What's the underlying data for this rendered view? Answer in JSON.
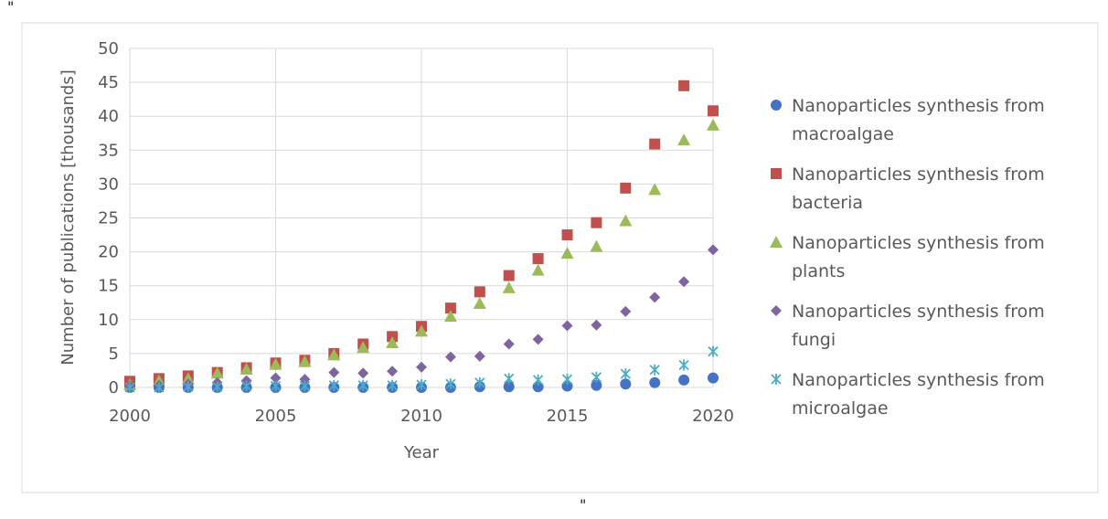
{
  "stray_marks": [
    "\"",
    "\"",
    "\""
  ],
  "chart_data": {
    "type": "scatter",
    "title": "",
    "xlabel": "Year",
    "ylabel": "Number of publications [thousands]",
    "xlim": [
      2000,
      2020
    ],
    "ylim": [
      0,
      50
    ],
    "xticks": [
      2000,
      2005,
      2010,
      2015,
      2020
    ],
    "yticks": [
      0,
      5,
      10,
      15,
      20,
      25,
      30,
      35,
      40,
      45,
      50
    ],
    "grid": true,
    "legend_position": "right",
    "x": [
      2000,
      2001,
      2002,
      2003,
      2004,
      2005,
      2006,
      2007,
      2008,
      2009,
      2010,
      2011,
      2012,
      2013,
      2014,
      2015,
      2016,
      2017,
      2018,
      2019,
      2020
    ],
    "series": [
      {
        "name": "Nanoparticles synthesis from macroalgae",
        "legend_lines": [
          "Nanoparticles synthesis from",
          "macroalgae"
        ],
        "marker": "circle",
        "color": "#4472C4",
        "values": [
          0.0,
          0.0,
          0.0,
          0.0,
          0.0,
          0.0,
          0.0,
          0.0,
          0.0,
          0.0,
          0.0,
          0.0,
          0.1,
          0.1,
          0.1,
          0.2,
          0.3,
          0.5,
          0.7,
          1.1,
          1.4
        ]
      },
      {
        "name": "Nanoparticles synthesis from bacteria",
        "legend_lines": [
          "Nanoparticles synthesis from",
          "bacteria"
        ],
        "marker": "square",
        "color": "#C0504D",
        "values": [
          0.9,
          1.3,
          1.7,
          2.2,
          2.9,
          3.6,
          4.0,
          5.0,
          6.4,
          7.5,
          9.0,
          11.7,
          14.1,
          16.5,
          19.0,
          22.5,
          24.3,
          29.4,
          35.9,
          44.5,
          40.8
        ]
      },
      {
        "name": "Nanoparticles synthesis from plants",
        "legend_lines": [
          "Nanoparticles synthesis from",
          "plants"
        ],
        "marker": "triangle",
        "color": "#9BBB59",
        "values": [
          0.4,
          1.0,
          1.3,
          2.1,
          2.7,
          3.4,
          3.8,
          4.8,
          5.9,
          6.6,
          8.3,
          10.5,
          12.4,
          14.7,
          17.3,
          19.8,
          20.8,
          24.6,
          29.2,
          36.5,
          38.7
        ]
      },
      {
        "name": "Nanoparticles synthesis from fungi",
        "legend_lines": [
          "Nanoparticles synthesis from",
          "fungi"
        ],
        "marker": "diamond",
        "color": "#8064A2",
        "values": [
          0.2,
          0.3,
          0.5,
          0.7,
          1.0,
          1.4,
          1.2,
          2.2,
          2.1,
          2.4,
          3.0,
          4.5,
          4.6,
          6.4,
          7.1,
          9.1,
          9.2,
          11.2,
          13.3,
          15.6,
          20.3
        ]
      },
      {
        "name": "Nanoparticles synthesis from microalgae",
        "legend_lines": [
          "Nanoparticles synthesis from",
          "microalgae"
        ],
        "marker": "asterisk",
        "color": "#4BACC6",
        "values": [
          0.0,
          0.0,
          0.1,
          0.1,
          0.2,
          0.2,
          0.2,
          0.3,
          0.3,
          0.3,
          0.4,
          0.5,
          0.7,
          1.3,
          1.1,
          1.2,
          1.5,
          2.0,
          2.6,
          3.3,
          5.3
        ]
      }
    ]
  }
}
